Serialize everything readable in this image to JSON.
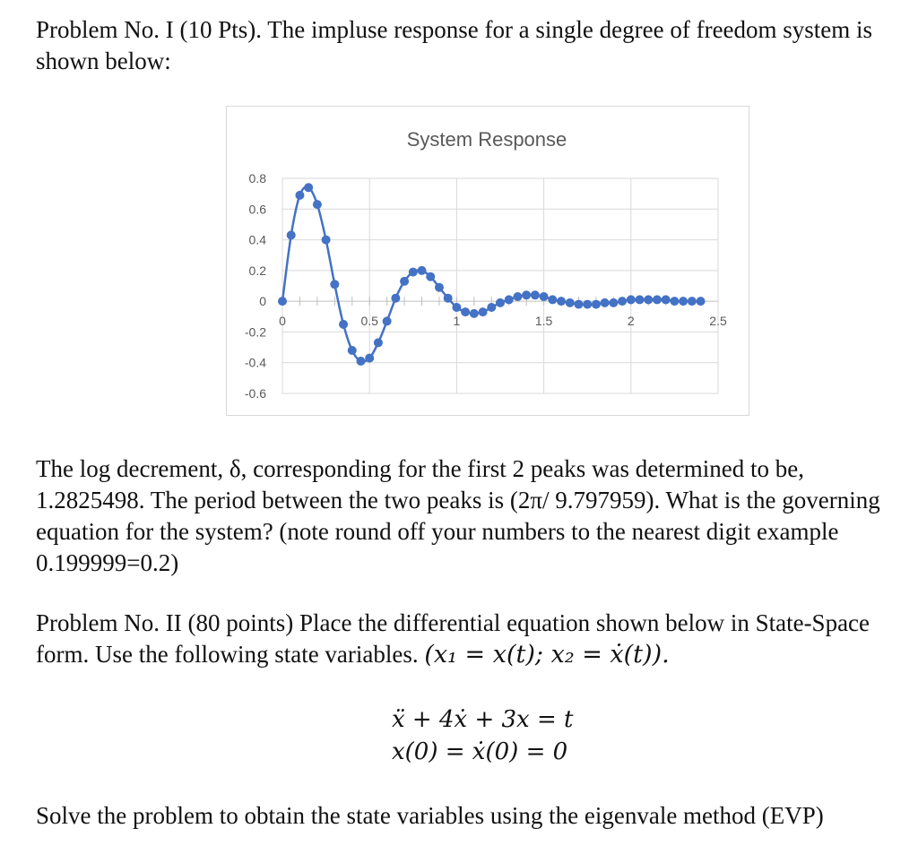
{
  "problem1": {
    "intro": "Problem No. I (10 Pts). The impluse response for a single degree of freedom system is shown below:",
    "question": "The log decrement, δ, corresponding for the first 2 peaks was determined to be, 1.2825498. The period between the two peaks is (2π/ 9.797959). What is the governing equation for the system? (note round off your numbers to the nearest digit example 0.199999=0.2)"
  },
  "problem2": {
    "prefix": "Problem No. II (80 points) Place the differential equation shown below in State-Space form. Use the following state variables. ",
    "state_vars": "(x₁ = x(t); x₂ = ẋ(t)).",
    "equation1": "ẍ + 4ẋ + 3x = t",
    "equation2": "x(0) = ẋ(0) = 0",
    "instruction": "Solve the problem to obtain the state variables using the eigenvale method (EVP)"
  },
  "chart_data": {
    "type": "scatter",
    "title": "System Response",
    "xlabel": "",
    "ylabel": "",
    "xlim": [
      0,
      2.5
    ],
    "ylim": [
      -0.6,
      0.8
    ],
    "x_ticks": [
      "0",
      "0.5",
      "1",
      "1.5",
      "2",
      "2.5"
    ],
    "y_ticks": [
      "0.8",
      "0.6",
      "0.4",
      "0.2",
      "0",
      "-0.2",
      "-0.4",
      "-0.6"
    ],
    "grid": true,
    "marker_color": "#4472c4",
    "series": [
      {
        "x": [
          0,
          0.05,
          0.1,
          0.15,
          0.2,
          0.25,
          0.3,
          0.35,
          0.4,
          0.45,
          0.5,
          0.55,
          0.6,
          0.65,
          0.7,
          0.75,
          0.8,
          0.85,
          0.9,
          0.95,
          1.0,
          1.05,
          1.1,
          1.15,
          1.2,
          1.25,
          1.3,
          1.35,
          1.4,
          1.45,
          1.5,
          1.55,
          1.6,
          1.65,
          1.7,
          1.75,
          1.8,
          1.85,
          1.9,
          1.95,
          2.0,
          2.05,
          2.1,
          2.15,
          2.2,
          2.25,
          2.3,
          2.35,
          2.4
        ],
        "y": [
          0,
          0.43,
          0.69,
          0.74,
          0.63,
          0.4,
          0.11,
          -0.15,
          -0.32,
          -0.39,
          -0.37,
          -0.27,
          -0.13,
          0.02,
          0.13,
          0.19,
          0.2,
          0.16,
          0.09,
          0.02,
          -0.04,
          -0.07,
          -0.08,
          -0.07,
          -0.04,
          -0.01,
          0.01,
          0.03,
          0.04,
          0.04,
          0.03,
          0.01,
          0.0,
          -0.01,
          -0.02,
          -0.02,
          -0.02,
          -0.01,
          -0.01,
          0.0,
          0.01,
          0.01,
          0.01,
          0.01,
          0.01,
          0.0,
          0.0,
          0.0,
          0.0
        ]
      }
    ]
  }
}
